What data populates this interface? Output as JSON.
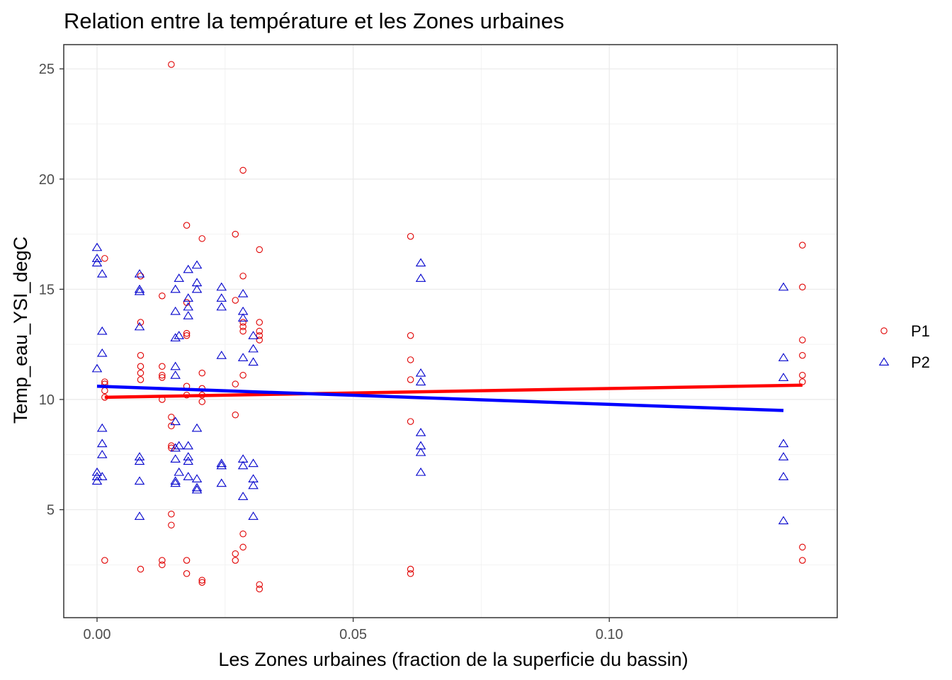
{
  "chart_data": {
    "type": "scatter",
    "title": "Relation entre la température et les Zones urbaines",
    "xlabel": "Les Zones urbaines (fraction de la superficie du bassin)",
    "ylabel": "Temp_eau_YSI_degC",
    "xlim": [
      -0.0065,
      0.1445
    ],
    "ylim": [
      0.1,
      26.1
    ],
    "x_ticks": [
      0.0,
      0.05,
      0.1
    ],
    "x_tick_labels": [
      "0.00",
      "0.05",
      "0.10"
    ],
    "y_ticks": [
      5,
      10,
      15,
      20,
      25
    ],
    "y_tick_labels": [
      "5",
      "10",
      "15",
      "20",
      "25"
    ],
    "grid": true,
    "legend_position": "right",
    "series": [
      {
        "name": "P1",
        "marker": "circle",
        "color": "#e00000",
        "points": [
          [
            0.0015,
            16.4
          ],
          [
            0.0015,
            10.8
          ],
          [
            0.0015,
            10.7
          ],
          [
            0.0015,
            10.4
          ],
          [
            0.0015,
            10.1
          ],
          [
            0.0015,
            2.7
          ],
          [
            0.0085,
            15.6
          ],
          [
            0.0085,
            13.5
          ],
          [
            0.0085,
            12.0
          ],
          [
            0.0085,
            11.5
          ],
          [
            0.0085,
            11.2
          ],
          [
            0.0085,
            10.9
          ],
          [
            0.0085,
            2.3
          ],
          [
            0.0127,
            14.7
          ],
          [
            0.0127,
            11.5
          ],
          [
            0.0127,
            11.1
          ],
          [
            0.0127,
            11.0
          ],
          [
            0.0127,
            10.0
          ],
          [
            0.0127,
            2.7
          ],
          [
            0.0127,
            2.5
          ],
          [
            0.0145,
            25.2
          ],
          [
            0.0145,
            9.2
          ],
          [
            0.0145,
            8.8
          ],
          [
            0.0145,
            7.9
          ],
          [
            0.0145,
            7.8
          ],
          [
            0.0145,
            4.8
          ],
          [
            0.0145,
            4.3
          ],
          [
            0.0175,
            17.9
          ],
          [
            0.0175,
            14.4
          ],
          [
            0.0175,
            13.0
          ],
          [
            0.0175,
            12.9
          ],
          [
            0.0175,
            10.6
          ],
          [
            0.0175,
            10.2
          ],
          [
            0.0175,
            2.7
          ],
          [
            0.0175,
            2.1
          ],
          [
            0.0205,
            17.3
          ],
          [
            0.0205,
            11.2
          ],
          [
            0.0205,
            10.5
          ],
          [
            0.0205,
            10.2
          ],
          [
            0.0205,
            9.9
          ],
          [
            0.0205,
            1.8
          ],
          [
            0.0205,
            1.7
          ],
          [
            0.027,
            17.5
          ],
          [
            0.027,
            14.5
          ],
          [
            0.027,
            10.7
          ],
          [
            0.027,
            9.3
          ],
          [
            0.027,
            3.0
          ],
          [
            0.027,
            2.7
          ],
          [
            0.0285,
            20.4
          ],
          [
            0.0285,
            15.6
          ],
          [
            0.0285,
            13.5
          ],
          [
            0.0285,
            13.3
          ],
          [
            0.0285,
            13.1
          ],
          [
            0.0285,
            11.1
          ],
          [
            0.0285,
            3.9
          ],
          [
            0.0285,
            3.3
          ],
          [
            0.0317,
            16.8
          ],
          [
            0.0317,
            13.5
          ],
          [
            0.0317,
            13.1
          ],
          [
            0.0317,
            12.9
          ],
          [
            0.0317,
            12.7
          ],
          [
            0.0317,
            1.6
          ],
          [
            0.0317,
            1.4
          ],
          [
            0.0612,
            17.4
          ],
          [
            0.0612,
            12.9
          ],
          [
            0.0612,
            11.8
          ],
          [
            0.0612,
            10.9
          ],
          [
            0.0612,
            9.0
          ],
          [
            0.0612,
            2.3
          ],
          [
            0.0612,
            2.1
          ],
          [
            0.1377,
            17.0
          ],
          [
            0.1377,
            15.1
          ],
          [
            0.1377,
            12.7
          ],
          [
            0.1377,
            12.0
          ],
          [
            0.1377,
            11.1
          ],
          [
            0.1377,
            10.8
          ],
          [
            0.1377,
            3.3
          ],
          [
            0.1377,
            2.7
          ]
        ]
      },
      {
        "name": "P2",
        "marker": "triangle",
        "color": "#0000cc",
        "points": [
          [
            0.0,
            16.9
          ],
          [
            0.0,
            16.4
          ],
          [
            0.0,
            16.2
          ],
          [
            0.0,
            11.4
          ],
          [
            0.0,
            6.7
          ],
          [
            0.0,
            6.5
          ],
          [
            0.0,
            6.3
          ],
          [
            0.001,
            15.7
          ],
          [
            0.001,
            13.1
          ],
          [
            0.001,
            12.1
          ],
          [
            0.001,
            8.7
          ],
          [
            0.001,
            8.0
          ],
          [
            0.001,
            7.5
          ],
          [
            0.001,
            6.5
          ],
          [
            0.0083,
            15.7
          ],
          [
            0.0083,
            15.0
          ],
          [
            0.0083,
            14.9
          ],
          [
            0.0083,
            13.3
          ],
          [
            0.0083,
            7.4
          ],
          [
            0.0083,
            7.2
          ],
          [
            0.0083,
            6.3
          ],
          [
            0.0083,
            4.7
          ],
          [
            0.0153,
            15.0
          ],
          [
            0.0153,
            14.0
          ],
          [
            0.0153,
            12.8
          ],
          [
            0.0153,
            11.5
          ],
          [
            0.0153,
            11.1
          ],
          [
            0.0153,
            9.0
          ],
          [
            0.0153,
            7.8
          ],
          [
            0.0153,
            7.3
          ],
          [
            0.0153,
            6.3
          ],
          [
            0.0153,
            6.2
          ],
          [
            0.016,
            15.5
          ],
          [
            0.016,
            12.9
          ],
          [
            0.016,
            7.9
          ],
          [
            0.016,
            6.7
          ],
          [
            0.0178,
            15.9
          ],
          [
            0.0178,
            14.6
          ],
          [
            0.0178,
            14.2
          ],
          [
            0.0178,
            13.8
          ],
          [
            0.0178,
            7.9
          ],
          [
            0.0178,
            7.4
          ],
          [
            0.0178,
            7.2
          ],
          [
            0.0178,
            6.5
          ],
          [
            0.0195,
            16.1
          ],
          [
            0.0195,
            15.3
          ],
          [
            0.0195,
            15.0
          ],
          [
            0.0195,
            8.7
          ],
          [
            0.0195,
            6.4
          ],
          [
            0.0195,
            6.0
          ],
          [
            0.0195,
            5.9
          ],
          [
            0.0243,
            15.1
          ],
          [
            0.0243,
            14.6
          ],
          [
            0.0243,
            14.2
          ],
          [
            0.0243,
            12.0
          ],
          [
            0.0243,
            7.1
          ],
          [
            0.0243,
            7.0
          ],
          [
            0.0243,
            6.2
          ],
          [
            0.0285,
            14.8
          ],
          [
            0.0285,
            14.0
          ],
          [
            0.0285,
            13.7
          ],
          [
            0.0285,
            11.9
          ],
          [
            0.0285,
            7.3
          ],
          [
            0.0285,
            7.0
          ],
          [
            0.0285,
            5.6
          ],
          [
            0.0305,
            12.9
          ],
          [
            0.0305,
            12.3
          ],
          [
            0.0305,
            11.7
          ],
          [
            0.0305,
            7.1
          ],
          [
            0.0305,
            6.4
          ],
          [
            0.0305,
            6.1
          ],
          [
            0.0305,
            4.7
          ],
          [
            0.0632,
            16.2
          ],
          [
            0.0632,
            15.5
          ],
          [
            0.0632,
            11.2
          ],
          [
            0.0632,
            10.8
          ],
          [
            0.0632,
            8.5
          ],
          [
            0.0632,
            7.9
          ],
          [
            0.0632,
            7.6
          ],
          [
            0.0632,
            6.7
          ],
          [
            0.134,
            15.1
          ],
          [
            0.134,
            11.9
          ],
          [
            0.134,
            11.0
          ],
          [
            0.134,
            8.0
          ],
          [
            0.134,
            7.4
          ],
          [
            0.134,
            6.5
          ],
          [
            0.134,
            4.5
          ]
        ]
      }
    ],
    "fit_lines": [
      {
        "series": "P1",
        "color": "#ff0000",
        "x": [
          0.0015,
          0.1377
        ],
        "y": [
          10.1,
          10.65
        ]
      },
      {
        "series": "P2",
        "color": "#0000ff",
        "x": [
          0.0,
          0.134
        ],
        "y": [
          10.6,
          9.5
        ]
      }
    ]
  }
}
